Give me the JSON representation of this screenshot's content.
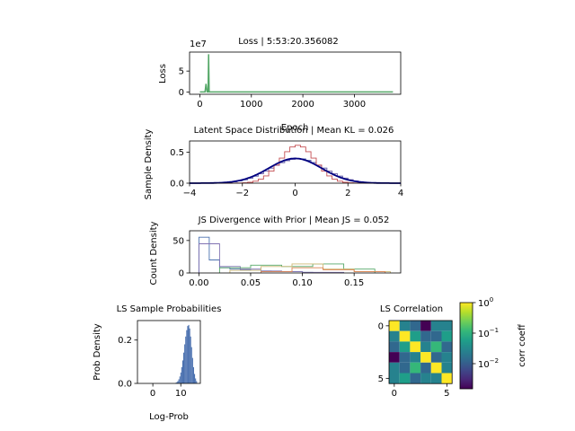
{
  "chart_data": [
    {
      "id": "loss",
      "type": "line",
      "title": "Loss | 5:53:20.356082",
      "xlabel": "Epoch",
      "ylabel": "Loss",
      "offset_label": "1e7",
      "xlim": [
        -200,
        3900
      ],
      "ylim": [
        -0.5,
        9.5
      ],
      "xticks": [
        0,
        1000,
        2000,
        3000
      ],
      "yticks": [
        0,
        5
      ],
      "color": "#55a868",
      "series": [
        {
          "x": [
            0,
            100,
            120,
            140,
            160,
            170,
            180,
            200,
            300,
            600,
            1000,
            2000,
            3000,
            3750
          ],
          "y": [
            0.05,
            0.05,
            2.0,
            0.05,
            0.05,
            9.0,
            0.05,
            0.05,
            0.05,
            0.05,
            0.05,
            0.05,
            0.05,
            0.05
          ]
        }
      ]
    },
    {
      "id": "latent",
      "type": "line",
      "title": "Latent Space Distribution | Mean KL = 0.026",
      "ylabel": "Sample Density",
      "xlim": [
        -4,
        4
      ],
      "ylim": [
        0,
        0.68
      ],
      "xticks": [
        -4,
        -2,
        0,
        2,
        4
      ],
      "yticks": [
        0.0,
        0.5
      ],
      "series": [
        {
          "color": "#4c72b0",
          "sigma": 1.0,
          "peak": 0.4
        },
        {
          "color": "#8172b2",
          "sigma": 1.02,
          "peak": 0.39
        },
        {
          "color": "#c44e52",
          "sigma": 0.66,
          "peak": 0.61
        },
        {
          "color": "#000080",
          "sigma": 1.0,
          "peak": 0.399
        }
      ]
    },
    {
      "id": "js",
      "type": "bar",
      "title": "JS Divergence with Prior | Mean JS = 0.052",
      "ylabel": "Count Density",
      "xlim": [
        -0.009,
        0.195
      ],
      "ylim": [
        0,
        65
      ],
      "xticks": [
        0.0,
        0.05,
        0.1,
        0.15
      ],
      "xtick_labels": [
        "0.00",
        "0.05",
        "0.10",
        "0.15"
      ],
      "yticks": [
        0,
        50
      ],
      "series": [
        {
          "color": "#4c72b0",
          "edges": [
            0,
            0.01,
            0.02,
            0.03,
            0.04,
            0.05,
            0.06,
            0.07,
            0.08,
            0.09,
            0.1,
            0.11
          ],
          "counts": [
            55,
            20,
            8,
            6,
            5,
            4,
            3,
            2,
            2,
            2,
            1
          ]
        },
        {
          "color": "#8172b2",
          "edges": [
            0,
            0.02,
            0.04,
            0.06,
            0.08,
            0.1,
            0.12,
            0.14
          ],
          "counts": [
            45,
            10,
            6,
            3,
            2,
            1,
            1
          ]
        },
        {
          "color": "#55a868",
          "edges": [
            0.02,
            0.05,
            0.08,
            0.11,
            0.14,
            0.17
          ],
          "counts": [
            8,
            12,
            10,
            14,
            6
          ]
        },
        {
          "color": "#ccb974",
          "edges": [
            0.03,
            0.06,
            0.09,
            0.12,
            0.15,
            0.185
          ],
          "counts": [
            4,
            10,
            14,
            6,
            2
          ]
        },
        {
          "color": "#dd8452",
          "edges": [
            0.06,
            0.09,
            0.12,
            0.15,
            0.18
          ],
          "counts": [
            2,
            8,
            5,
            2
          ]
        }
      ]
    },
    {
      "id": "prob",
      "type": "bar",
      "title": "LS Sample Probabilities",
      "xlabel": "Log-Prob",
      "ylabel": "Prob Density",
      "xlim": [
        -5.5,
        17
      ],
      "ylim": [
        0,
        0.29
      ],
      "xticks": [
        0,
        10
      ],
      "yticks": [
        0.0,
        0.2
      ],
      "yticks_labels": [
        "0.0",
        "0.2"
      ],
      "color": "#4c72b0",
      "center": 12.6,
      "spread": 1.5,
      "peak": 0.27
    },
    {
      "id": "corr",
      "type": "heatmap",
      "title": "LS Correlation",
      "colorbar_label": "corr coeff",
      "colorbar_scale": "log",
      "colorbar_ticks": [
        "10",
        "10",
        "10"
      ],
      "colorbar_exps": [
        "0",
        "−1",
        "−2"
      ],
      "xticks": [
        0,
        5
      ],
      "yticks": [
        0,
        5
      ],
      "matrix": [
        [
          1.0,
          0.02,
          0.01,
          0.002,
          0.03,
          0.02
        ],
        [
          0.02,
          1.0,
          0.05,
          0.01,
          0.01,
          0.04
        ],
        [
          0.01,
          0.05,
          1.0,
          0.02,
          0.08,
          0.01
        ],
        [
          0.002,
          0.01,
          0.02,
          1.0,
          0.01,
          0.03
        ],
        [
          0.03,
          0.01,
          0.08,
          0.01,
          1.0,
          0.02
        ],
        [
          0.02,
          0.04,
          0.01,
          0.03,
          0.02,
          1.0
        ]
      ]
    }
  ]
}
